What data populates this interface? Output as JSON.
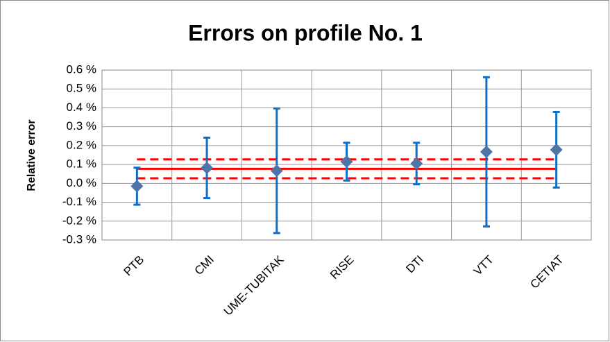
{
  "chart_data": {
    "type": "errorbar",
    "title": "Errors on profile No. 1",
    "y_label": "Relative error",
    "categories": [
      "PTB",
      "CMI",
      "UME-TUBITAK",
      "RISE",
      "DTI",
      "VTT",
      "CETIAT"
    ],
    "values": [
      -0.015,
      0.082,
      0.067,
      0.115,
      0.105,
      0.167,
      0.178
    ],
    "errors": [
      0.098,
      0.16,
      0.33,
      0.1,
      0.11,
      0.395,
      0.2
    ],
    "color": "#4f74a8",
    "error_color": "#0f6fc6",
    "reference_line": {
      "value": 0.077,
      "color": "#ff0000"
    },
    "reference_band": [
      0.027,
      0.127
    ],
    "ylim": [
      -0.3,
      0.6
    ],
    "yticks": [
      {
        "value": -0.3,
        "label": "-0.3 %"
      },
      {
        "value": -0.2,
        "label": "-0.2 %"
      },
      {
        "value": -0.1,
        "label": "-0.1 %"
      },
      {
        "value": 0,
        "label": "0.0 %"
      },
      {
        "value": 0.1,
        "label": "0.1 %"
      },
      {
        "value": 0.2,
        "label": "0.2 %"
      },
      {
        "value": 0.3,
        "label": "0.3 %"
      },
      {
        "value": 0.4,
        "label": "0.4 %"
      },
      {
        "value": 0.5,
        "label": "0.5 %"
      },
      {
        "value": 0.6,
        "label": "0.6 %"
      }
    ],
    "grid": true
  }
}
